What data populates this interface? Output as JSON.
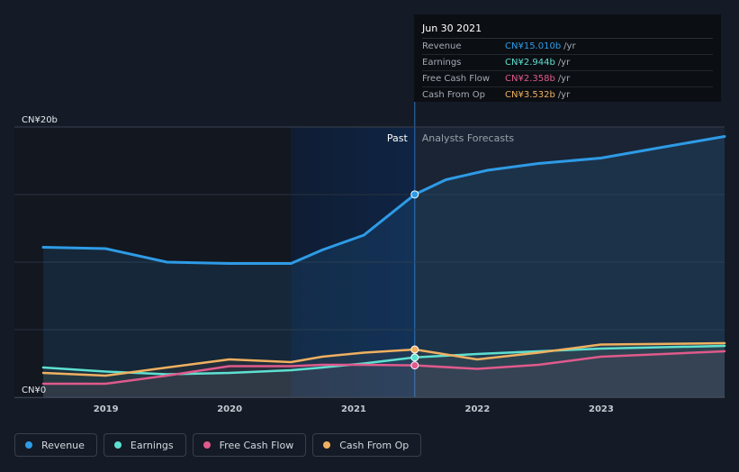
{
  "tooltip": {
    "date": "Jun 30 2021",
    "rows": [
      {
        "label": "Revenue",
        "value": "CN¥15.010b",
        "unit": "/yr",
        "color": "#2e9be6"
      },
      {
        "label": "Earnings",
        "value": "CN¥2.944b",
        "unit": "/yr",
        "color": "#5ee0d0"
      },
      {
        "label": "Free Cash Flow",
        "value": "CN¥2.358b",
        "unit": "/yr",
        "color": "#e05a8c"
      },
      {
        "label": "Cash From Op",
        "value": "CN¥3.532b",
        "unit": "/yr",
        "color": "#f0b060"
      }
    ]
  },
  "annotations": {
    "past": "Past",
    "forecast": "Analysts Forecasts"
  },
  "colors": {
    "background": "#151b26",
    "past_shade": "#0f2444",
    "forecast_shade": "#1a2434"
  },
  "chart_data": {
    "type": "line",
    "y_unit": "CN¥ billions",
    "ylim": [
      0,
      20
    ],
    "y_ticks": [
      {
        "value": 0,
        "label": "CN¥0"
      },
      {
        "value": 20,
        "label": "CN¥20b"
      }
    ],
    "x_ticks": [
      "2019",
      "2020",
      "2021",
      "2022",
      "2023"
    ],
    "xlim": [
      "2018-06-30",
      "2023-12-31"
    ],
    "past_region_start": "2020-06-30",
    "divider": "2021-06-30",
    "grid": true,
    "series": [
      {
        "name": "Revenue",
        "color": "#2e9be6",
        "points": [
          [
            "2018-06-30",
            11.1
          ],
          [
            "2018-12-31",
            11.0
          ],
          [
            "2019-06-30",
            10.0
          ],
          [
            "2019-12-31",
            9.9
          ],
          [
            "2020-06-30",
            9.9
          ],
          [
            "2020-09-30",
            10.9
          ],
          [
            "2021-01-31",
            12.0
          ],
          [
            "2021-06-30",
            15.01
          ],
          [
            "2021-09-30",
            16.1
          ],
          [
            "2022-01-31",
            16.8
          ],
          [
            "2022-06-30",
            17.3
          ],
          [
            "2022-12-31",
            17.7
          ],
          [
            "2023-06-30",
            18.5
          ],
          [
            "2023-12-31",
            19.3
          ]
        ]
      },
      {
        "name": "Earnings",
        "color": "#5ee0d0",
        "points": [
          [
            "2018-06-30",
            2.2
          ],
          [
            "2018-12-31",
            1.9
          ],
          [
            "2019-06-30",
            1.7
          ],
          [
            "2019-12-31",
            1.8
          ],
          [
            "2020-06-30",
            2.0
          ],
          [
            "2020-09-30",
            2.2
          ],
          [
            "2021-01-31",
            2.5
          ],
          [
            "2021-06-30",
            2.944
          ],
          [
            "2021-12-31",
            3.2
          ],
          [
            "2022-06-30",
            3.4
          ],
          [
            "2022-12-31",
            3.6
          ],
          [
            "2023-12-31",
            3.8
          ]
        ]
      },
      {
        "name": "Free Cash Flow",
        "color": "#e05a8c",
        "points": [
          [
            "2018-06-30",
            1.0
          ],
          [
            "2018-12-31",
            1.0
          ],
          [
            "2019-06-30",
            1.6
          ],
          [
            "2019-12-31",
            2.3
          ],
          [
            "2020-06-30",
            2.3
          ],
          [
            "2020-09-30",
            2.4
          ],
          [
            "2021-01-31",
            2.4
          ],
          [
            "2021-06-30",
            2.358
          ],
          [
            "2021-12-31",
            2.1
          ],
          [
            "2022-06-30",
            2.4
          ],
          [
            "2022-12-31",
            3.0
          ],
          [
            "2023-12-31",
            3.4
          ]
        ]
      },
      {
        "name": "Cash From Op",
        "color": "#f0b060",
        "points": [
          [
            "2018-06-30",
            1.8
          ],
          [
            "2018-12-31",
            1.6
          ],
          [
            "2019-06-30",
            2.2
          ],
          [
            "2019-12-31",
            2.8
          ],
          [
            "2020-06-30",
            2.6
          ],
          [
            "2020-09-30",
            3.0
          ],
          [
            "2021-01-31",
            3.3
          ],
          [
            "2021-06-30",
            3.532
          ],
          [
            "2021-12-31",
            2.8
          ],
          [
            "2022-06-30",
            3.3
          ],
          [
            "2022-12-31",
            3.9
          ],
          [
            "2023-12-31",
            4.0
          ]
        ]
      }
    ]
  }
}
